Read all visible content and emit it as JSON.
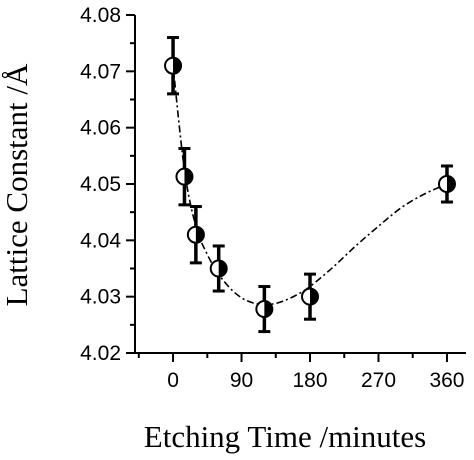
{
  "chart_data": {
    "type": "scatter",
    "xlabel": "Etching Time /minutes",
    "ylabel": "Lattice Constant /Å",
    "xlim": [
      -50,
      385
    ],
    "ylim": [
      4.02,
      4.08
    ],
    "x_ticks": [
      0,
      90,
      180,
      270,
      360
    ],
    "x_tick_labels": [
      "0",
      "90",
      "180",
      "270",
      "360"
    ],
    "y_ticks": [
      4.02,
      4.03,
      4.04,
      4.05,
      4.06,
      4.07,
      4.08
    ],
    "y_tick_labels": [
      "4.02",
      "4.03",
      "4.04",
      "4.05",
      "4.06",
      "4.07",
      "4.08"
    ],
    "grid": false,
    "series": [
      {
        "x": [
          0,
          15,
          30,
          60,
          120,
          180,
          360
        ],
        "y": [
          4.071,
          4.0513,
          4.041,
          4.035,
          4.0278,
          4.03,
          4.05
        ],
        "yerr": [
          0.005,
          0.005,
          0.005,
          0.004,
          0.004,
          0.004,
          0.0032
        ]
      }
    ],
    "fit_curve": {
      "style": "dash-dot",
      "x": [
        0,
        15,
        30,
        45,
        60,
        75,
        90,
        105,
        120,
        135,
        150,
        165,
        180,
        210,
        240,
        270,
        300,
        330,
        360
      ],
      "y": [
        4.071,
        4.0525,
        4.0425,
        4.0375,
        4.034,
        4.0315,
        4.0298,
        4.0289,
        4.0286,
        4.0288,
        4.0295,
        4.0305,
        4.0318,
        4.0352,
        4.039,
        4.0425,
        4.0458,
        4.0482,
        4.05
      ]
    }
  }
}
